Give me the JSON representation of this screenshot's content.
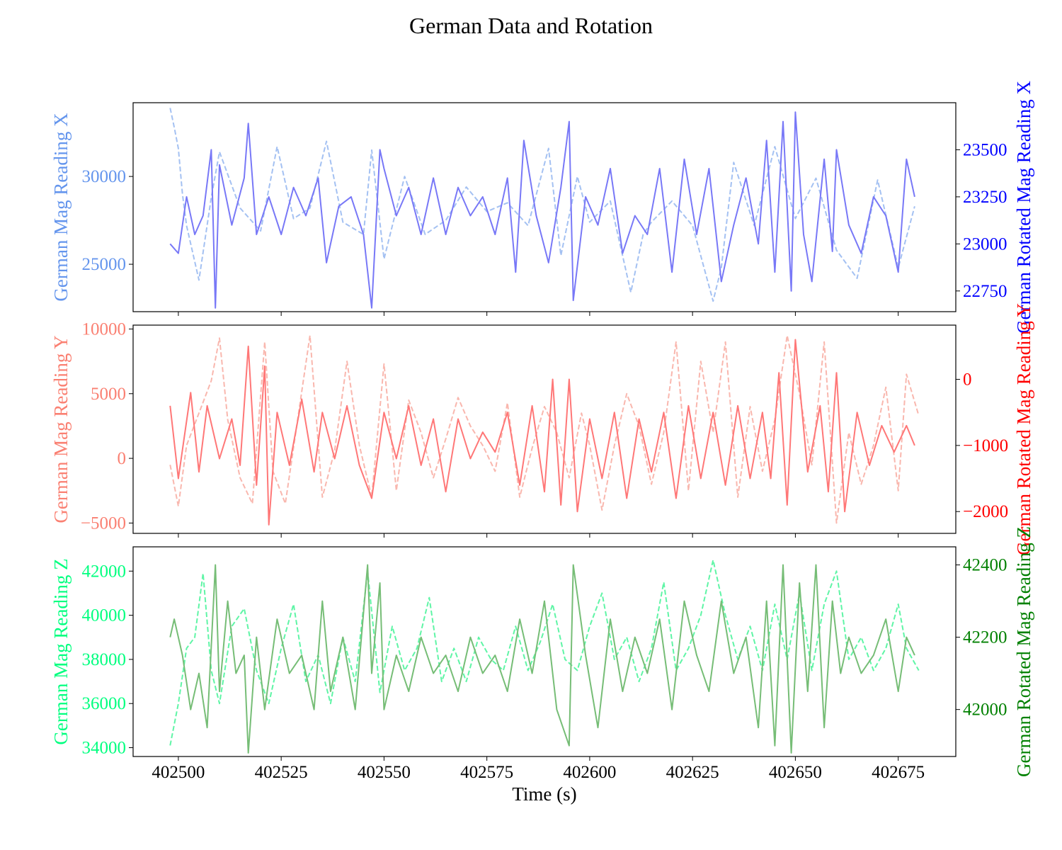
{
  "title": "German Data and Rotation",
  "chart_data": [
    {
      "type": "line",
      "ylabel_left": "German Mag Reading X",
      "ylabel_right": "German Rotated Mag Reading X",
      "xlabel": "",
      "xlim": [
        402489,
        402689
      ],
      "ylim_left": [
        22300,
        34200
      ],
      "ylim_right": [
        22640,
        23750
      ],
      "yticks_left": [
        25000,
        30000
      ],
      "yticks_right": [
        22750,
        23000,
        23250,
        23500
      ],
      "colors": {
        "left": "#6495ED",
        "right": "#0000FF",
        "left_line": "#A4C1F2",
        "right_line": "#7878F7"
      },
      "series": [
        {
          "axis": "left",
          "style": "dashed",
          "x": [
            402498,
            402499,
            402500,
            402501,
            402502,
            402505,
            402508,
            402510,
            402515,
            402520,
            402524,
            402528,
            402532,
            402536,
            402540,
            402545,
            402547,
            402550,
            402555,
            402560,
            402565,
            402570,
            402575,
            402580,
            402585,
            402590,
            402593,
            402597,
            402600,
            402605,
            402610,
            402613,
            402615,
            402620,
            402625,
            402630,
            402632,
            402635,
            402640,
            402645,
            402650,
            402655,
            402660,
            402665,
            402670,
            402675,
            402679
          ],
          "values": [
            33900,
            32800,
            31600,
            29000,
            27200,
            24100,
            28800,
            31400,
            28200,
            26900,
            31700,
            27600,
            28200,
            32000,
            27400,
            26700,
            31500,
            25300,
            30000,
            26700,
            27500,
            29400,
            28000,
            28500,
            27200,
            31600,
            25500,
            30000,
            27400,
            28600,
            23400,
            26700,
            27400,
            28600,
            27200,
            22900,
            24800,
            30800,
            27200,
            31700,
            27600,
            29900,
            25800,
            24200,
            29800,
            24800,
            28300
          ]
        },
        {
          "axis": "right",
          "style": "solid",
          "x": [
            402498,
            402500,
            402502,
            402504,
            402506,
            402508,
            402509,
            402510,
            402513,
            402516,
            402517,
            402519,
            402522,
            402525,
            402528,
            402531,
            402534,
            402536,
            402539,
            402542,
            402545,
            402547,
            402549,
            402550,
            402553,
            402556,
            402559,
            402562,
            402565,
            402568,
            402571,
            402574,
            402577,
            402580,
            402582,
            402584,
            402587,
            402590,
            402593,
            402595,
            402596,
            402599,
            402602,
            402605,
            402608,
            402611,
            402614,
            402617,
            402620,
            402623,
            402626,
            402629,
            402632,
            402635,
            402638,
            402641,
            402643,
            402645,
            402647,
            402649,
            402650,
            402652,
            402654,
            402657,
            402659,
            402660,
            402663,
            402666,
            402669,
            402672,
            402675,
            402677,
            402679
          ],
          "values": [
            23000,
            22950,
            23250,
            23050,
            23150,
            23500,
            22660,
            23420,
            23100,
            23350,
            23640,
            23050,
            23250,
            23050,
            23300,
            23150,
            23350,
            22900,
            23200,
            23250,
            23050,
            22660,
            23500,
            23400,
            23150,
            23300,
            23050,
            23350,
            23050,
            23300,
            23150,
            23250,
            23050,
            23350,
            22850,
            23550,
            23150,
            22900,
            23300,
            23650,
            22700,
            23250,
            23100,
            23400,
            22950,
            23150,
            23050,
            23400,
            22850,
            23450,
            23050,
            23400,
            22800,
            23100,
            23350,
            23000,
            23550,
            22850,
            23650,
            22750,
            23700,
            23050,
            22800,
            23450,
            22960,
            23500,
            23100,
            22950,
            23250,
            23150,
            22850,
            23450,
            23250
          ]
        }
      ]
    },
    {
      "type": "line",
      "ylabel_left": "German Mag Reading Y",
      "ylabel_right": "German Rotated Mag Reading Y",
      "xlabel": "",
      "xlim": [
        402489,
        402689
      ],
      "ylim_left": [
        -5800,
        10300
      ],
      "ylim_right": [
        -2330,
        820
      ],
      "yticks_left": [
        -5000,
        0,
        5000,
        10000
      ],
      "yticks_right": [
        -2000,
        -1000,
        0
      ],
      "colors": {
        "left": "#FA8072",
        "right": "#FF0000",
        "left_line": "#F9B7AE",
        "right_line": "#FF7777"
      },
      "series": [
        {
          "axis": "left",
          "style": "dashed",
          "x": [
            402498,
            402500,
            402502,
            402505,
            402508,
            402510,
            402512,
            402515,
            402518,
            402521,
            402523,
            402526,
            402529,
            402532,
            402535,
            402538,
            402541,
            402544,
            402547,
            402550,
            402553,
            402556,
            402559,
            402562,
            402565,
            402568,
            402571,
            402574,
            402577,
            402580,
            402583,
            402586,
            402589,
            402592,
            402595,
            402598,
            402600,
            402603,
            402606,
            402609,
            402612,
            402615,
            402618,
            402621,
            402624,
            402627,
            402630,
            402633,
            402636,
            402639,
            402642,
            402645,
            402648,
            402651,
            402654,
            402657,
            402660,
            402663,
            402666,
            402669,
            402672,
            402675,
            402677,
            402680
          ],
          "values": [
            -500,
            -3700,
            1000,
            3500,
            6000,
            9300,
            3000,
            -1500,
            -3500,
            9000,
            -1000,
            -3500,
            3000,
            9500,
            -3000,
            600,
            7500,
            1000,
            -3000,
            7300,
            -2500,
            4500,
            2000,
            -1500,
            1500,
            4700,
            2500,
            1000,
            -1000,
            4300,
            -3000,
            800,
            4000,
            2000,
            -1500,
            3500,
            1000,
            -4000,
            1000,
            5000,
            2500,
            -2000,
            2000,
            9000,
            -2500,
            7500,
            2000,
            9000,
            -3000,
            4000,
            -1000,
            3000,
            9500,
            5000,
            -500,
            9000,
            -5000,
            2000,
            -2000,
            1000,
            5500,
            -2500,
            6500,
            3300
          ]
        },
        {
          "axis": "right",
          "style": "solid",
          "x": [
            402498,
            402500,
            402503,
            402505,
            402507,
            402510,
            402513,
            402515,
            402517,
            402519,
            402521,
            402522,
            402524,
            402527,
            402530,
            402533,
            402535,
            402538,
            402541,
            402544,
            402547,
            402550,
            402553,
            402556,
            402559,
            402562,
            402565,
            402568,
            402571,
            402574,
            402577,
            402580,
            402583,
            402586,
            402589,
            402591,
            402593,
            402595,
            402597,
            402600,
            402603,
            402606,
            402609,
            402612,
            402615,
            402618,
            402621,
            402624,
            402627,
            402630,
            402633,
            402636,
            402639,
            402642,
            402644,
            402646,
            402648,
            402650,
            402653,
            402656,
            402658,
            402660,
            402662,
            402665,
            402668,
            402671,
            402674,
            402677,
            402679
          ],
          "values": [
            -400,
            -1500,
            -200,
            -1400,
            -400,
            -1200,
            -600,
            -1300,
            500,
            -1600,
            200,
            -2200,
            -500,
            -1300,
            -300,
            -1400,
            -500,
            -1200,
            -400,
            -1300,
            -1800,
            -500,
            -1200,
            -400,
            -1300,
            -600,
            -1700,
            -600,
            -1200,
            -800,
            -1100,
            -500,
            -1600,
            -400,
            -1700,
            0,
            -1900,
            0,
            -2000,
            -600,
            -1500,
            -500,
            -1800,
            -600,
            -1400,
            -500,
            -1800,
            -400,
            -1500,
            -500,
            -1600,
            -400,
            -1500,
            -500,
            -1500,
            100,
            -1900,
            600,
            -1400,
            -400,
            -1700,
            100,
            -2000,
            -500,
            -1300,
            -700,
            -1100,
            -700,
            -1000
          ]
        }
      ]
    },
    {
      "type": "line",
      "ylabel_left": "German Mag Reading Z",
      "ylabel_right": "German Rotated Mag Reading Z",
      "xlabel": "Time (s)",
      "xlim": [
        402489,
        402689
      ],
      "ylim_left": [
        33600,
        43100
      ],
      "ylim_right": [
        41870,
        42450
      ],
      "yticks_left": [
        34000,
        36000,
        38000,
        40000,
        42000
      ],
      "yticks_right": [
        42000,
        42200,
        42400
      ],
      "xticks": [
        402500,
        402525,
        402550,
        402575,
        402600,
        402625,
        402650,
        402675
      ],
      "colors": {
        "left": "#00FF7F",
        "right": "#008000",
        "left_line": "#5FF5A6",
        "right_line": "#76BD76"
      },
      "series": [
        {
          "axis": "left",
          "style": "dashed",
          "x": [
            402498,
            402500,
            402502,
            402504,
            402506,
            402508,
            402510,
            402513,
            402516,
            402519,
            402522,
            402525,
            402528,
            402531,
            402534,
            402537,
            402540,
            402543,
            402546,
            402549,
            402552,
            402555,
            402558,
            402561,
            402564,
            402567,
            402570,
            402573,
            402576,
            402579,
            402582,
            402585,
            402588,
            402591,
            402594,
            402597,
            402600,
            402603,
            402606,
            402609,
            402612,
            402615,
            402618,
            402621,
            402624,
            402627,
            402630,
            402633,
            402636,
            402639,
            402642,
            402645,
            402648,
            402651,
            402654,
            402657,
            402660,
            402663,
            402666,
            402669,
            402672,
            402675,
            402677,
            402680
          ],
          "values": [
            34100,
            36000,
            38500,
            39000,
            41900,
            37500,
            36000,
            39500,
            40300,
            37500,
            36000,
            38500,
            40500,
            37000,
            38200,
            36000,
            39000,
            37000,
            42000,
            36500,
            39500,
            37500,
            38500,
            40800,
            37000,
            38500,
            37000,
            39000,
            38000,
            37500,
            39500,
            37500,
            38800,
            40500,
            38000,
            37500,
            39500,
            41000,
            38000,
            39000,
            37000,
            38500,
            41500,
            37500,
            38500,
            40000,
            42500,
            40000,
            38000,
            39500,
            37500,
            40500,
            38000,
            41000,
            37500,
            40500,
            42000,
            38000,
            39000,
            37500,
            38500,
            40500,
            38500,
            37500
          ]
        },
        {
          "axis": "right",
          "style": "solid",
          "x": [
            402498,
            402499,
            402501,
            402503,
            402505,
            402507,
            402509,
            402510,
            402512,
            402514,
            402516,
            402517,
            402519,
            402521,
            402524,
            402527,
            402530,
            402533,
            402535,
            402537,
            402540,
            402543,
            402546,
            402547,
            402549,
            402550,
            402553,
            402556,
            402559,
            402562,
            402565,
            402568,
            402571,
            402574,
            402577,
            402580,
            402583,
            402586,
            402589,
            402592,
            402595,
            402596,
            402599,
            402602,
            402605,
            402608,
            402611,
            402614,
            402617,
            402620,
            402623,
            402626,
            402629,
            402632,
            402635,
            402638,
            402641,
            402643,
            402645,
            402647,
            402649,
            402651,
            402653,
            402655,
            402657,
            402659,
            402661,
            402663,
            402666,
            402669,
            402672,
            402675,
            402677,
            402679
          ],
          "values": [
            42200,
            42250,
            42150,
            42000,
            42100,
            41950,
            42400,
            42050,
            42300,
            42100,
            42150,
            41880,
            42200,
            42000,
            42250,
            42100,
            42150,
            42000,
            42300,
            42050,
            42200,
            42000,
            42400,
            42100,
            42350,
            42000,
            42150,
            42050,
            42200,
            42100,
            42150,
            42050,
            42200,
            42100,
            42150,
            42050,
            42250,
            42100,
            42300,
            42000,
            41900,
            42400,
            42150,
            41950,
            42250,
            42050,
            42200,
            42100,
            42250,
            42000,
            42300,
            42150,
            42050,
            42300,
            42100,
            42200,
            41950,
            42300,
            41900,
            42400,
            41880,
            42350,
            42050,
            42400,
            41950,
            42300,
            42100,
            42200,
            42100,
            42150,
            42250,
            42050,
            42200,
            42150
          ]
        }
      ]
    }
  ]
}
